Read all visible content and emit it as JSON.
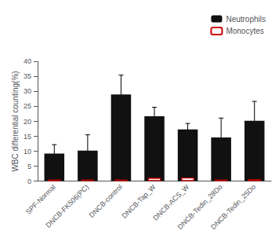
{
  "chart_data": {
    "type": "bar",
    "categories": [
      "SPF-Normal",
      "DNCB-FK506(PC)",
      "DNCB-control",
      "DNCB-Tap_W",
      "DNCB-ACS_W",
      "DNCB-Tedin_28Do",
      "DNCB-Tedin_25Do"
    ],
    "series": [
      {
        "name": "Neutrophils",
        "color": "#111111",
        "values": [
          9.2,
          10.2,
          29.0,
          21.7,
          17.3,
          14.6,
          20.2
        ],
        "errors": [
          3.0,
          5.3,
          6.5,
          3.0,
          2.0,
          6.5,
          6.5
        ]
      },
      {
        "name": "Monocytes",
        "color": "#cc0000",
        "values": [
          0.5,
          0.5,
          0.5,
          1.1,
          1.2,
          0.5,
          0.6
        ],
        "errors": [
          0.2,
          0.2,
          0.2,
          0.3,
          0.3,
          0.2,
          0.2
        ]
      }
    ],
    "ylabel": "WBC differential counting(%)",
    "ylim": [
      0,
      40
    ],
    "yticks": [
      0,
      5,
      10,
      15,
      20,
      25,
      30,
      35,
      40
    ],
    "legend": "upper right",
    "grid": false
  }
}
